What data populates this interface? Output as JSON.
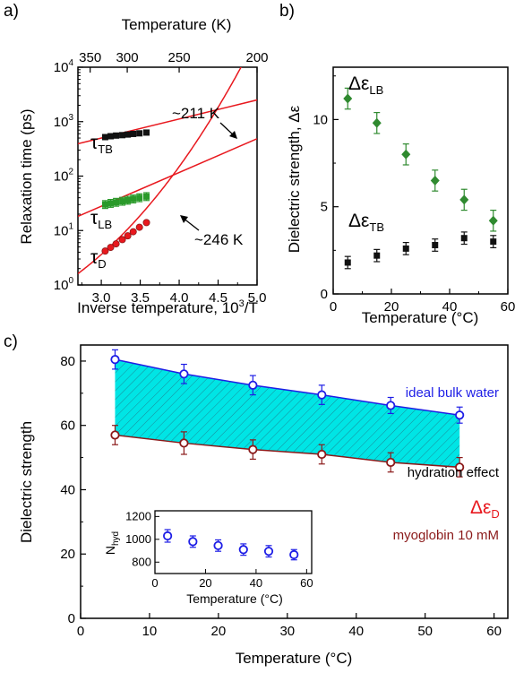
{
  "colors": {
    "red": "#e8181e",
    "green": "#2a9a2a",
    "darkgreen": "#2f8a2f",
    "blue": "#1e1ee6",
    "darkred": "#8b1a1a",
    "cyan": "#00e5e5",
    "black": "#111111"
  },
  "chart_data": [
    {
      "panel": "a)",
      "type": "scatter",
      "scale": "log-y",
      "xlabel": "Inverse temperature, 10³/T",
      "xlabel_top": "Temperature (K)",
      "ylabel": "Relaxation time (ps)",
      "xlim": [
        2.7,
        5.0
      ],
      "ylim_log10": [
        0,
        4
      ],
      "xticks": [
        "3.0",
        "3.5",
        "4.0",
        "4.5",
        "5.0"
      ],
      "xticks_top": [
        "350",
        "300",
        "250",
        "200"
      ],
      "yticks": [
        "10⁰",
        "10¹",
        "10²",
        "10³",
        "10⁴"
      ],
      "series": [
        {
          "name": "τTB",
          "symbol": "τ",
          "subscript": "TB",
          "x": [
            3.05,
            3.12,
            3.19,
            3.27,
            3.34,
            3.41,
            3.49,
            3.58
          ],
          "y": [
            520,
            540,
            555,
            565,
            580,
            595,
            610,
            630
          ]
        },
        {
          "name": "τLB",
          "symbol": "τ",
          "subscript": "LB",
          "x": [
            3.05,
            3.12,
            3.19,
            3.27,
            3.34,
            3.41,
            3.49,
            3.58
          ],
          "y": [
            30,
            31.5,
            33,
            34.5,
            36,
            38,
            40,
            42
          ]
        },
        {
          "name": "τD",
          "symbol": "τ",
          "subscript": "D",
          "x": [
            3.05,
            3.12,
            3.19,
            3.27,
            3.34,
            3.41,
            3.49,
            3.58
          ],
          "y": [
            4.2,
            4.9,
            5.7,
            6.8,
            8.0,
            9.5,
            11.5,
            14.0
          ]
        }
      ],
      "annotations": [
        "~211 K",
        "~246 K"
      ]
    },
    {
      "panel": "b)",
      "type": "scatter",
      "xlabel": "Temperature (°C)",
      "ylabel": "Dielectric strength, Δε",
      "xlim": [
        0,
        60
      ],
      "ylim": [
        0,
        13
      ],
      "xticks": [
        "0",
        "20",
        "40",
        "60"
      ],
      "yticks": [
        "0",
        "5",
        "10"
      ],
      "series": [
        {
          "name": "ΔεLB",
          "symbol": "Δε",
          "subscript": "LB",
          "x": [
            5,
            15,
            25,
            35,
            45,
            55
          ],
          "y": [
            11.2,
            9.8,
            8.0,
            6.5,
            5.4,
            4.2
          ],
          "err": [
            0.6,
            0.6,
            0.6,
            0.6,
            0.6,
            0.6
          ]
        },
        {
          "name": "ΔεTB",
          "symbol": "Δε",
          "subscript": "TB",
          "x": [
            5,
            15,
            25,
            35,
            45,
            55
          ],
          "y": [
            1.8,
            2.2,
            2.6,
            2.8,
            3.2,
            3.0
          ],
          "err": [
            0.35,
            0.35,
            0.35,
            0.35,
            0.35,
            0.35
          ]
        }
      ]
    },
    {
      "panel": "c)",
      "type": "scatter",
      "xlabel": "Temperature (°C)",
      "ylabel": "Dielectric strength",
      "xlim": [
        0,
        62
      ],
      "ylim": [
        0,
        85
      ],
      "xticks": [
        "0",
        "10",
        "20",
        "30",
        "40",
        "50",
        "60"
      ],
      "yticks": [
        "0",
        "20",
        "40",
        "60",
        "80"
      ],
      "series": [
        {
          "name": "ideal bulk water",
          "x": [
            5,
            15,
            25,
            35,
            45,
            55
          ],
          "y": [
            80.5,
            76,
            72.5,
            69.5,
            66.2,
            63.2
          ],
          "err": [
            3,
            3,
            3,
            3,
            2.5,
            2.5
          ]
        },
        {
          "name": "ΔεD",
          "symbol": "Δε",
          "subscript": "D",
          "x": [
            5,
            15,
            25,
            35,
            45,
            55
          ],
          "y": [
            57,
            54.5,
            52.5,
            51,
            48.5,
            47
          ],
          "err": [
            3,
            3.5,
            3,
            3,
            3,
            3
          ]
        }
      ],
      "annotations": [
        "ideal bulk water",
        "hydration effect",
        "myoglobin 10 mM"
      ]
    },
    {
      "panel": "c) inset",
      "type": "scatter",
      "xlabel": "Temperature (°C)",
      "ylabel": "Nhyd",
      "ylabel_symbol": "N",
      "ylabel_subscript": "hyd",
      "xlim": [
        0,
        62
      ],
      "ylim": [
        700,
        1250
      ],
      "xticks": [
        "0",
        "20",
        "40",
        "60"
      ],
      "yticks": [
        "800",
        "1000",
        "1200"
      ],
      "series": [
        {
          "name": "Nhyd",
          "x": [
            5,
            15,
            25,
            35,
            45,
            55
          ],
          "y": [
            1030,
            980,
            945,
            910,
            895,
            865
          ],
          "err": [
            55,
            50,
            50,
            50,
            50,
            45
          ]
        }
      ]
    }
  ]
}
